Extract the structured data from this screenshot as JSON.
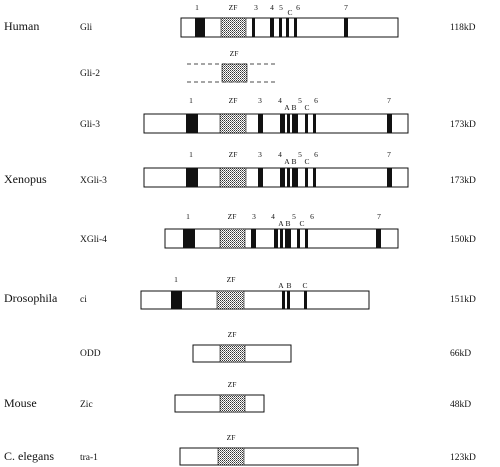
{
  "colors": {
    "ink": "#111111",
    "zf_fill": "#bdbdbd",
    "box_fill": "#ffffff"
  },
  "species": [
    {
      "id": "human",
      "label": "Human"
    },
    {
      "id": "xenopus",
      "label": "Xenopus"
    },
    {
      "id": "drosophila",
      "label": "Drosophila"
    },
    {
      "id": "mouse",
      "label": "Mouse"
    },
    {
      "id": "elegans",
      "label": "C. elegans"
    }
  ],
  "proteins": [
    {
      "id": "gli",
      "species": "human",
      "name": "Gli",
      "size": "118kD",
      "labels": {
        "n1": "1",
        "zf": "ZF",
        "n3": "3",
        "n4": "4",
        "n5": "5",
        "c": "C",
        "n6": "6",
        "n7": "7"
      }
    },
    {
      "id": "gli-2",
      "species": "human",
      "name": "Gli-2",
      "size": "",
      "partial": true,
      "labels": {
        "zf": "ZF"
      }
    },
    {
      "id": "gli-3",
      "species": "human",
      "name": "Gli-3",
      "size": "173kD",
      "labels": {
        "n1": "1",
        "zf": "ZF",
        "n3": "3",
        "n4": "4",
        "a": "A",
        "b": "B",
        "n5": "5",
        "c": "C",
        "n6": "6",
        "n7": "7"
      }
    },
    {
      "id": "xgli-3",
      "species": "xenopus",
      "name": "XGli-3",
      "size": "173kD",
      "labels": {
        "n1": "1",
        "zf": "ZF",
        "n3": "3",
        "n4": "4",
        "a": "A",
        "b": "B",
        "n5": "5",
        "c": "C",
        "n6": "6",
        "n7": "7"
      }
    },
    {
      "id": "xgli-4",
      "species": "xenopus",
      "name": "XGli-4",
      "size": "150kD",
      "labels": {
        "n1": "1",
        "zf": "ZF",
        "n3": "3",
        "n4": "4",
        "a": "A",
        "b": "B",
        "n5": "5",
        "c": "C",
        "n6": "6",
        "n7": "7"
      }
    },
    {
      "id": "ci",
      "species": "drosophila",
      "name": "ci",
      "size": "151kD",
      "labels": {
        "n1": "1",
        "zf": "ZF",
        "a": "A",
        "b": "B",
        "c": "C"
      }
    },
    {
      "id": "odd",
      "species": "drosophila",
      "name": "ODD",
      "size": "66kD",
      "labels": {
        "zf": "ZF"
      }
    },
    {
      "id": "zic",
      "species": "mouse",
      "name": "Zic",
      "size": "48kD",
      "labels": {
        "zf": "ZF"
      }
    },
    {
      "id": "tra-1",
      "species": "elegans",
      "name": "tra-1",
      "size": "123kD",
      "labels": {
        "zf": "ZF"
      }
    }
  ]
}
